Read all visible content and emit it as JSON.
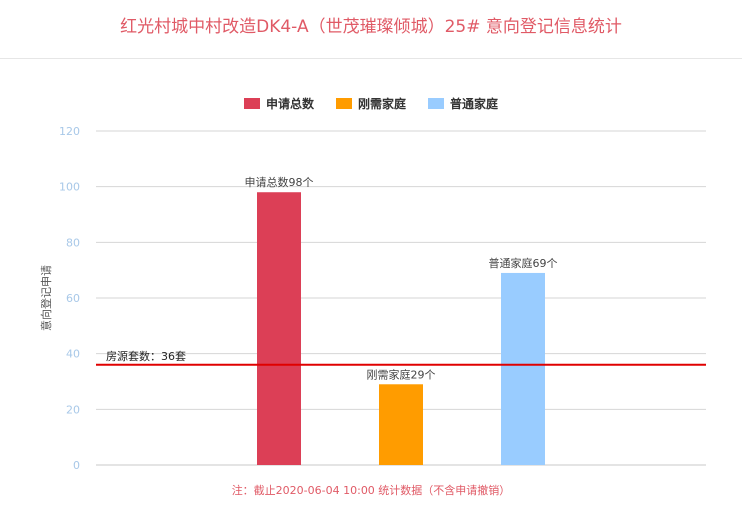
{
  "title": "红光村城中村改造DK4-A（世茂璀璨倾城）25# 意向登记信息统计",
  "footnote": "注：截止2020-06-04 10:00 统计数据（不含申请撤销）",
  "chart_data": {
    "type": "bar",
    "categories": [
      "申请总数",
      "刚需家庭",
      "普通家庭"
    ],
    "values": [
      98,
      29,
      69
    ],
    "colors": [
      "#dc3f56",
      "#ff9c00",
      "#99ccff"
    ],
    "data_labels": [
      "申请总数98个",
      "刚需家庭29个",
      "普通家庭69个"
    ],
    "legend": [
      {
        "name": "申请总数",
        "color": "#dc3f56"
      },
      {
        "name": "刚需家庭",
        "color": "#ff9c00"
      },
      {
        "name": "普通家庭",
        "color": "#99ccff"
      }
    ],
    "legend_position": "top-center",
    "ylabel": "意向登记申请",
    "ylim": [
      0,
      120
    ],
    "yticks": [
      0,
      20,
      40,
      60,
      80,
      100,
      120
    ],
    "grid": true,
    "reference_line": {
      "value": 36,
      "label": "房源套数：36套",
      "color": "#e00000"
    }
  }
}
